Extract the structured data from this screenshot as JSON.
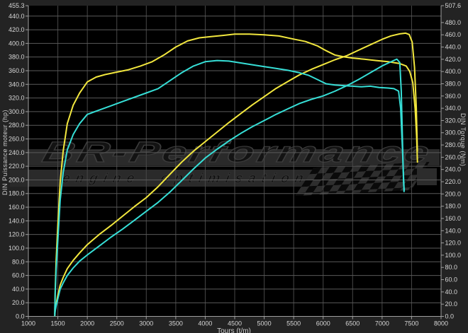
{
  "chart_data": {
    "type": "line",
    "x_axis": {
      "title": "Tours (t/m)",
      "min": 1000,
      "max": 8000,
      "ticks": [
        1000,
        1500,
        2000,
        2500,
        3000,
        3500,
        4000,
        4500,
        5000,
        5500,
        6000,
        6500,
        7000,
        7500,
        8000
      ]
    },
    "left_axis": {
      "title": "DIN Puissance moteur (hp)",
      "unit": "hp",
      "min": 0,
      "max": 455.3,
      "ticks": [
        455.3,
        440,
        420,
        400,
        380,
        360,
        340,
        320,
        300,
        280,
        260,
        240,
        220,
        200,
        180,
        160,
        140,
        120,
        100,
        80,
        60,
        40,
        20,
        0
      ]
    },
    "right_axis": {
      "title": "DIN Torque (Nm)",
      "unit": "Nm",
      "min": 0,
      "max": 507.6,
      "ticks": [
        507.6,
        480,
        460,
        440,
        420,
        400,
        380,
        360,
        340,
        320,
        300,
        280,
        260,
        240,
        220,
        200,
        180,
        160,
        140,
        120,
        100,
        80,
        60,
        40,
        20,
        0
      ]
    },
    "watermark": {
      "line1": "BR-Performance",
      "line2": "engine optimisation"
    },
    "colors": {
      "outer_bg": "#232323",
      "plot_bg": "#000000",
      "grid_h": "#5a5a5a",
      "grid_v": "#474747",
      "axis": "#9f9f9f",
      "tick_text": "#d6d6d6",
      "yellow": "#f2e73e",
      "cyan": "#36ded6",
      "watermark_band": "#2a2a2a"
    },
    "series": [
      {
        "id": "torque-yellow",
        "label": "Torque (yellow run, Nm)",
        "axis": "nm",
        "color": "#f2e73e",
        "points": [
          [
            1448,
            4
          ],
          [
            1455,
            40
          ],
          [
            1470,
            90
          ],
          [
            1500,
            150
          ],
          [
            1540,
            220
          ],
          [
            1590,
            270
          ],
          [
            1660,
            315
          ],
          [
            1760,
            345
          ],
          [
            1870,
            365
          ],
          [
            2000,
            383
          ],
          [
            2150,
            391
          ],
          [
            2300,
            395
          ],
          [
            2500,
            399
          ],
          [
            2700,
            403
          ],
          [
            2900,
            409
          ],
          [
            3100,
            416
          ],
          [
            3300,
            427
          ],
          [
            3500,
            440
          ],
          [
            3700,
            450
          ],
          [
            3900,
            455
          ],
          [
            4100,
            457
          ],
          [
            4300,
            459
          ],
          [
            4500,
            461
          ],
          [
            4750,
            461
          ],
          [
            5000,
            460
          ],
          [
            5250,
            458
          ],
          [
            5500,
            453
          ],
          [
            5700,
            449
          ],
          [
            5900,
            442
          ],
          [
            6050,
            434
          ],
          [
            6200,
            427
          ],
          [
            6350,
            424
          ],
          [
            6500,
            422
          ],
          [
            6700,
            420
          ],
          [
            6900,
            418
          ],
          [
            7100,
            416
          ],
          [
            7300,
            413
          ],
          [
            7410,
            409
          ],
          [
            7470,
            400
          ],
          [
            7520,
            382
          ],
          [
            7560,
            340
          ],
          [
            7585,
            295
          ],
          [
            7600,
            252
          ]
        ]
      },
      {
        "id": "power-yellow",
        "label": "Power (yellow run, hp)",
        "axis": "hp",
        "color": "#f2e73e",
        "points": [
          [
            1448,
            1
          ],
          [
            1455,
            9
          ],
          [
            1470,
            18
          ],
          [
            1500,
            31
          ],
          [
            1540,
            46
          ],
          [
            1590,
            57
          ],
          [
            1660,
            70
          ],
          [
            1760,
            82
          ],
          [
            1870,
            93
          ],
          [
            2000,
            105
          ],
          [
            2200,
            120
          ],
          [
            2400,
            133
          ],
          [
            2600,
            147
          ],
          [
            2800,
            161
          ],
          [
            3000,
            174
          ],
          [
            3200,
            190
          ],
          [
            3400,
            208
          ],
          [
            3600,
            226
          ],
          [
            3800,
            242
          ],
          [
            4000,
            256
          ],
          [
            4200,
            270
          ],
          [
            4400,
            284
          ],
          [
            4600,
            297
          ],
          [
            4800,
            310
          ],
          [
            5000,
            322
          ],
          [
            5200,
            334
          ],
          [
            5400,
            344
          ],
          [
            5600,
            354
          ],
          [
            5800,
            362
          ],
          [
            6000,
            369
          ],
          [
            6200,
            376
          ],
          [
            6400,
            382
          ],
          [
            6600,
            390
          ],
          [
            6800,
            398
          ],
          [
            7000,
            406
          ],
          [
            7150,
            411
          ],
          [
            7300,
            414
          ],
          [
            7400,
            415
          ],
          [
            7460,
            413
          ],
          [
            7510,
            402
          ],
          [
            7550,
            365
          ],
          [
            7580,
            305
          ],
          [
            7598,
            242
          ]
        ]
      },
      {
        "id": "torque-cyan",
        "label": "Torque (cyan run, Nm)",
        "axis": "nm",
        "color": "#36ded6",
        "points": [
          [
            1448,
            4
          ],
          [
            1455,
            36
          ],
          [
            1470,
            75
          ],
          [
            1500,
            125
          ],
          [
            1540,
            190
          ],
          [
            1590,
            235
          ],
          [
            1660,
            272
          ],
          [
            1760,
            297
          ],
          [
            1870,
            315
          ],
          [
            2000,
            330
          ],
          [
            2200,
            337
          ],
          [
            2400,
            344
          ],
          [
            2600,
            351
          ],
          [
            2800,
            358
          ],
          [
            3000,
            365
          ],
          [
            3200,
            372
          ],
          [
            3400,
            385
          ],
          [
            3600,
            398
          ],
          [
            3800,
            409
          ],
          [
            4000,
            416
          ],
          [
            4200,
            418
          ],
          [
            4400,
            417
          ],
          [
            4600,
            414
          ],
          [
            4800,
            411
          ],
          [
            5000,
            408
          ],
          [
            5200,
            405
          ],
          [
            5400,
            402
          ],
          [
            5600,
            398
          ],
          [
            5750,
            394
          ],
          [
            5900,
            387
          ],
          [
            6050,
            380
          ],
          [
            6200,
            378
          ],
          [
            6350,
            377
          ],
          [
            6500,
            376
          ],
          [
            6650,
            375
          ],
          [
            6800,
            376
          ],
          [
            6950,
            374
          ],
          [
            7100,
            373
          ],
          [
            7200,
            372
          ],
          [
            7280,
            368
          ],
          [
            7315,
            340
          ],
          [
            7345,
            275
          ],
          [
            7365,
            225
          ],
          [
            7375,
            206
          ]
        ]
      },
      {
        "id": "power-cyan",
        "label": "Power (cyan run, hp)",
        "axis": "hp",
        "color": "#36ded6",
        "points": [
          [
            1448,
            1
          ],
          [
            1455,
            8
          ],
          [
            1470,
            15
          ],
          [
            1500,
            26
          ],
          [
            1540,
            40
          ],
          [
            1590,
            49
          ],
          [
            1660,
            60
          ],
          [
            1760,
            71
          ],
          [
            1870,
            81
          ],
          [
            2000,
            90
          ],
          [
            2200,
            103
          ],
          [
            2400,
            116
          ],
          [
            2600,
            128
          ],
          [
            2800,
            141
          ],
          [
            3000,
            154
          ],
          [
            3200,
            167
          ],
          [
            3400,
            182
          ],
          [
            3600,
            199
          ],
          [
            3800,
            216
          ],
          [
            4000,
            232
          ],
          [
            4200,
            245
          ],
          [
            4400,
            257
          ],
          [
            4600,
            268
          ],
          [
            4800,
            278
          ],
          [
            5000,
            287
          ],
          [
            5200,
            296
          ],
          [
            5400,
            304
          ],
          [
            5600,
            312
          ],
          [
            5800,
            318
          ],
          [
            6000,
            323
          ],
          [
            6200,
            330
          ],
          [
            6400,
            338
          ],
          [
            6600,
            347
          ],
          [
            6800,
            357
          ],
          [
            7000,
            367
          ],
          [
            7150,
            373
          ],
          [
            7250,
            377
          ],
          [
            7300,
            372
          ],
          [
            7325,
            330
          ],
          [
            7345,
            262
          ],
          [
            7362,
            200
          ],
          [
            7372,
            183
          ]
        ]
      }
    ]
  }
}
